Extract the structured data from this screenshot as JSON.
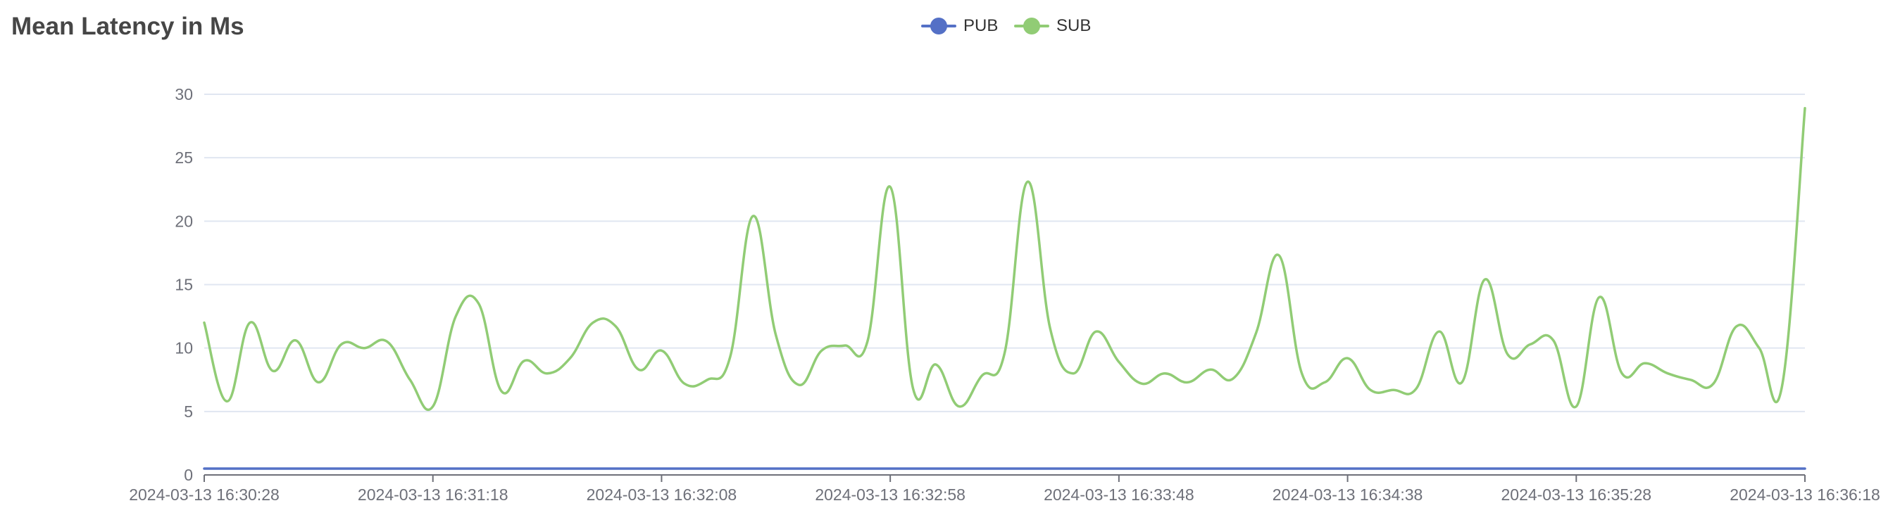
{
  "chart_data": {
    "type": "line",
    "title": "Mean Latency in Ms",
    "legend_position": "top-center",
    "grid": true,
    "smooth": true,
    "ylim": [
      0,
      30
    ],
    "y_ticks": [
      0,
      5,
      10,
      15,
      20,
      25,
      30
    ],
    "x_tick_labels": [
      "2024-03-13 16:30:28",
      "2024-03-13 16:31:18",
      "2024-03-13 16:32:08",
      "2024-03-13 16:32:58",
      "2024-03-13 16:33:48",
      "2024-03-13 16:34:38",
      "2024-03-13 16:35:28",
      "2024-03-13 16:36:18"
    ],
    "x_start": "2024-03-13 16:30:28",
    "x_end": "2024-03-13 16:36:18",
    "series": [
      {
        "name": "PUB",
        "color": "#5470c6",
        "values": [
          0.5,
          0.5,
          0.5,
          0.5,
          0.5,
          0.5,
          0.5,
          0.5,
          0.5,
          0.5,
          0.5,
          0.5,
          0.5,
          0.5,
          0.5,
          0.5,
          0.5,
          0.5,
          0.5,
          0.5,
          0.5,
          0.5,
          0.5,
          0.5,
          0.5,
          0.5,
          0.5,
          0.5,
          0.5,
          0.5,
          0.5,
          0.5,
          0.5,
          0.5,
          0.5,
          0.5,
          0.5,
          0.5,
          0.5,
          0.5,
          0.5,
          0.5,
          0.5,
          0.5,
          0.5,
          0.5,
          0.5,
          0.5,
          0.5,
          0.5,
          0.5,
          0.5,
          0.5,
          0.5,
          0.5,
          0.5,
          0.5,
          0.5,
          0.5,
          0.5,
          0.5,
          0.5,
          0.5,
          0.5,
          0.5,
          0.5,
          0.5,
          0.5,
          0.5,
          0.5,
          0.5
        ]
      },
      {
        "name": "SUB",
        "color": "#91cc75",
        "values": [
          12,
          5.8,
          12,
          8.2,
          10.6,
          7.3,
          10.3,
          10,
          10.5,
          7.5,
          5.4,
          12.5,
          13.5,
          6.6,
          9,
          8,
          9.2,
          12,
          11.7,
          8.3,
          9.8,
          7.2,
          7.5,
          9.3,
          20.4,
          11,
          7.1,
          9.8,
          10.2,
          10.5,
          22.7,
          6.8,
          8.7,
          5.4,
          7.8,
          9.6,
          23.1,
          11.5,
          8,
          11.3,
          8.9,
          7.2,
          8,
          7.3,
          8.3,
          7.6,
          11.2,
          17.3,
          8,
          7.3,
          9.2,
          6.7,
          6.7,
          6.8,
          11.3,
          7.3,
          15.4,
          9.5,
          10.3,
          10.6,
          5.4,
          14,
          8,
          8.8,
          8,
          7.5,
          7.2,
          11.7,
          10,
          7,
          28.9
        ]
      }
    ]
  }
}
